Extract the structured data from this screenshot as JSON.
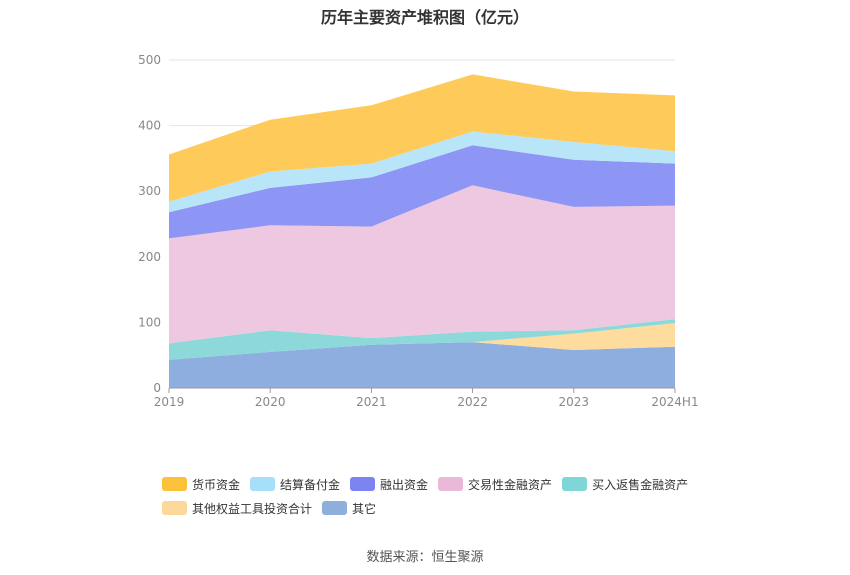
{
  "chart_data": {
    "type": "area",
    "stacked": true,
    "title": "历年主要资产堆积图（亿元）",
    "categories": [
      "2019",
      "2020",
      "2021",
      "2022",
      "2023",
      "2024H1"
    ],
    "ylim": [
      0,
      500
    ],
    "yticks": [
      "0",
      "100",
      "200",
      "300",
      "400",
      "500"
    ],
    "grid": true,
    "legend_position": "bottom",
    "series": [
      {
        "name": "其它",
        "color": "#8faee0",
        "values": [
          43,
          55,
          66,
          70,
          58,
          63
        ]
      },
      {
        "name": "其他权益工具投资合计",
        "color": "#fddc9e",
        "values": [
          0,
          0,
          0,
          0,
          25,
          36
        ]
      },
      {
        "name": "买入返售金融资产",
        "color": "#8dd9d9",
        "values": [
          25,
          33,
          10,
          16,
          5,
          6
        ]
      },
      {
        "name": "交易性金融资产",
        "color": "#eec8e0",
        "values": [
          160,
          160,
          170,
          223,
          188,
          173
        ]
      },
      {
        "name": "融出资金",
        "color": "#8d95f5",
        "values": [
          40,
          57,
          75,
          61,
          72,
          64
        ]
      },
      {
        "name": "结算备付金",
        "color": "#b8e5f7",
        "values": [
          16,
          25,
          21,
          21,
          27,
          19
        ]
      },
      {
        "name": "货币资金",
        "color": "#fecb5b",
        "values": [
          72,
          79,
          89,
          87,
          77,
          85
        ]
      }
    ],
    "legend": [
      {
        "name": "货币资金",
        "color": "#fcc13b"
      },
      {
        "name": "结算备付金",
        "color": "#a6dff9"
      },
      {
        "name": "融出资金",
        "color": "#7b84f0"
      },
      {
        "name": "交易性金融资产",
        "color": "#eab9d8"
      },
      {
        "name": "买入返售金融资产",
        "color": "#7fd6d6"
      },
      {
        "name": "其他权益工具投资合计",
        "color": "#fdd89b"
      },
      {
        "name": "其它",
        "color": "#8eaedc"
      }
    ]
  },
  "source_text": "数据来源：恒生聚源"
}
